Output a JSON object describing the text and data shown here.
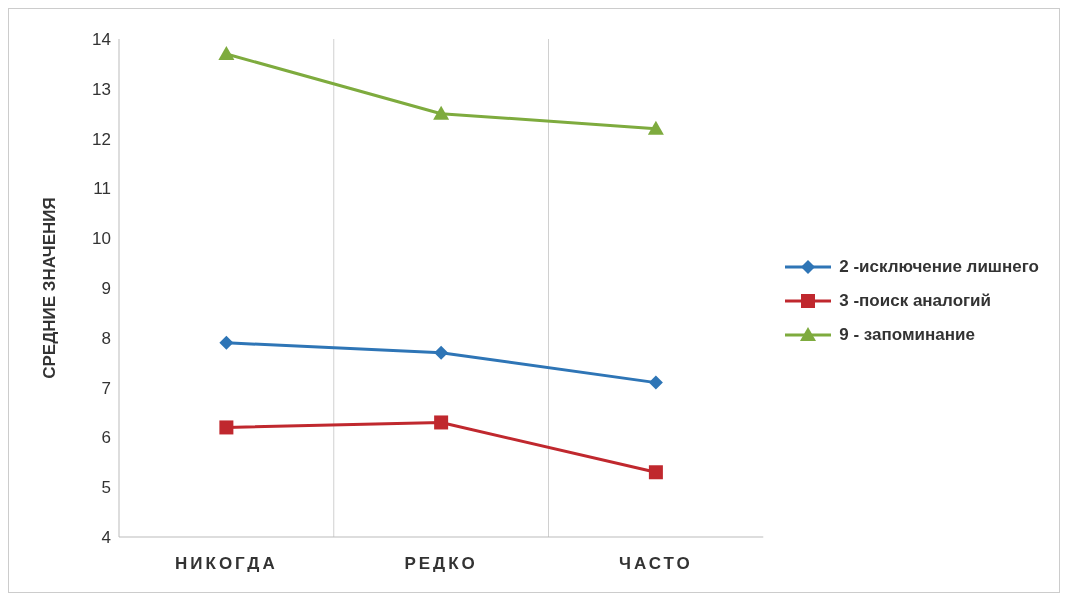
{
  "chart_data": {
    "type": "line",
    "ylabel": "СРЕДНИЕ ЗНАЧЕНИЯ",
    "categories": [
      "НИКОГДА",
      "РЕДКО",
      "ЧАСТО"
    ],
    "series": [
      {
        "name": "2 -исключение лишнего",
        "color": "#2e75b6",
        "marker": "diamond",
        "values": [
          7.9,
          7.7,
          7.1
        ]
      },
      {
        "name": "3 -поиск аналогий",
        "color": "#c0282e",
        "marker": "square",
        "values": [
          6.2,
          6.3,
          5.3
        ]
      },
      {
        "name": "9 - запоминание",
        "color": "#7eab3e",
        "marker": "triangle",
        "values": [
          13.7,
          12.5,
          12.2
        ]
      }
    ],
    "ylim": [
      4,
      14
    ],
    "yticks": [
      4,
      5,
      6,
      7,
      8,
      9,
      10,
      11,
      12,
      13,
      14
    ],
    "grid": "x",
    "legend": "right",
    "line_style": "solid"
  }
}
